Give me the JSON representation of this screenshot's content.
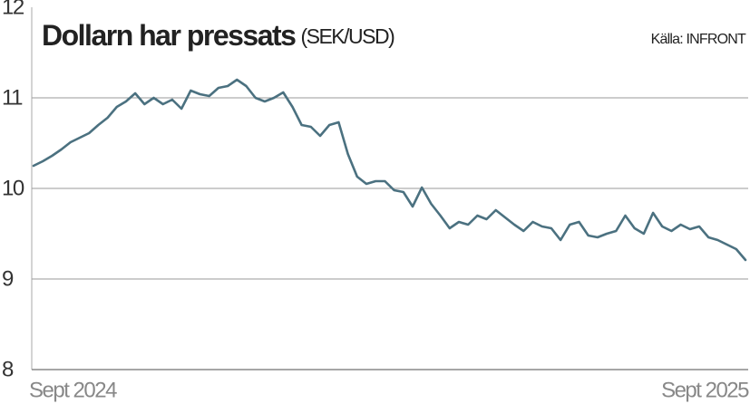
{
  "chart_data": {
    "type": "line",
    "title": "Dollarn har pressats",
    "subtitle": "(SEK/USD)",
    "source": "Källa: INFRONT",
    "categories": [
      "Sept 2024",
      null,
      null,
      null,
      null,
      null,
      null,
      null,
      null,
      null,
      null,
      null,
      null,
      null,
      null,
      null,
      null,
      null,
      null,
      null,
      null,
      null,
      null,
      null,
      null,
      null,
      null,
      null,
      null,
      null,
      null,
      null,
      null,
      null,
      null,
      null,
      null,
      null,
      null,
      null,
      null,
      null,
      null,
      null,
      null,
      null,
      null,
      null,
      null,
      null,
      null,
      null,
      null,
      null,
      null,
      null,
      null,
      null,
      null,
      null,
      null,
      null,
      null,
      null,
      null,
      null,
      null,
      null,
      null,
      null,
      null,
      null,
      null,
      null,
      null,
      null,
      null,
      "Sept 2025"
    ],
    "series": [
      {
        "name": "SEK/USD",
        "color": "#4b7180",
        "values": [
          10.25,
          10.3,
          10.36,
          10.43,
          10.51,
          10.56,
          10.61,
          10.7,
          10.78,
          10.9,
          10.96,
          11.05,
          10.93,
          11.0,
          10.93,
          10.98,
          10.88,
          11.08,
          11.04,
          11.02,
          11.11,
          11.13,
          11.2,
          11.13,
          11.0,
          10.96,
          11.0,
          11.06,
          10.9,
          10.7,
          10.68,
          10.58,
          10.7,
          10.73,
          10.38,
          10.13,
          10.05,
          10.08,
          10.08,
          9.98,
          9.96,
          9.8,
          10.01,
          9.83,
          9.7,
          9.56,
          9.63,
          9.6,
          9.7,
          9.66,
          9.76,
          9.68,
          9.6,
          9.53,
          9.63,
          9.58,
          9.56,
          9.43,
          9.6,
          9.63,
          9.48,
          9.46,
          9.5,
          9.53,
          9.7,
          9.56,
          9.5,
          9.73,
          9.58,
          9.53,
          9.6,
          9.55,
          9.58,
          9.46,
          9.43,
          9.38,
          9.33,
          9.21
        ]
      }
    ],
    "ylim": [
      8,
      12
    ],
    "yticks": [
      8,
      9,
      10,
      11,
      12
    ],
    "grid": true
  }
}
